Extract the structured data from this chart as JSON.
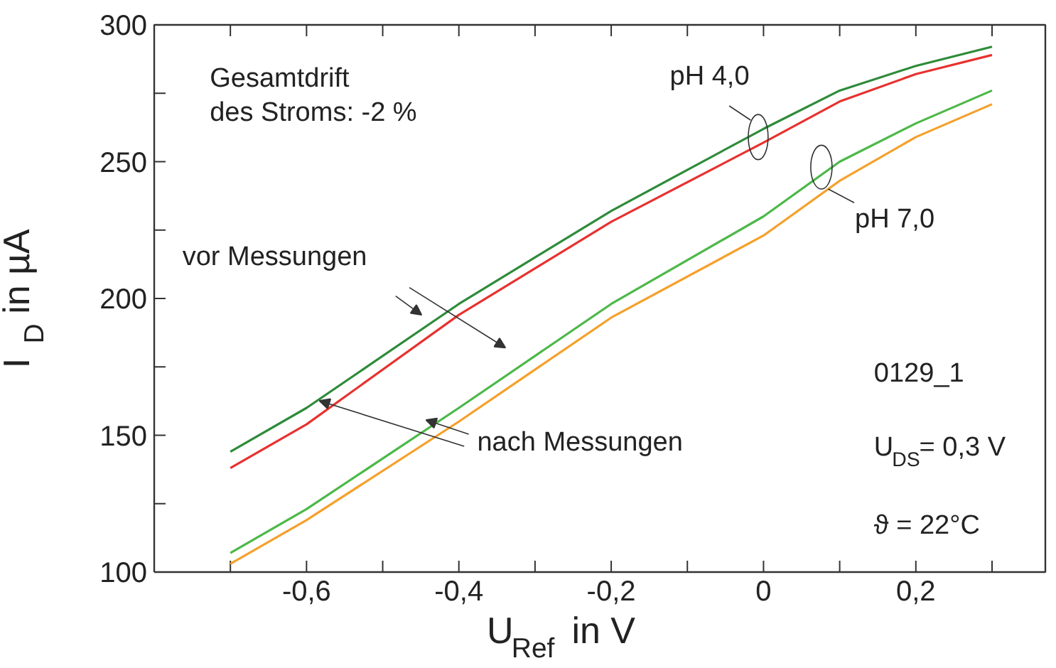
{
  "chart_data": {
    "type": "line",
    "xlabel": "U$_{Ref}$ in V",
    "ylabel": "I$_{D}$ in µA",
    "xlim": [
      -0.8,
      0.37
    ],
    "ylim": [
      100,
      300
    ],
    "xticks": [
      {
        "value": -0.7,
        "label": null
      },
      {
        "value": -0.6,
        "label": "-0,6"
      },
      {
        "value": -0.5,
        "label": null
      },
      {
        "value": -0.4,
        "label": "-0,4"
      },
      {
        "value": -0.3,
        "label": null
      },
      {
        "value": -0.2,
        "label": "-0,2"
      },
      {
        "value": -0.1,
        "label": null
      },
      {
        "value": 0,
        "label": "0"
      },
      {
        "value": 0.1,
        "label": null
      },
      {
        "value": 0.2,
        "label": "0,2"
      },
      {
        "value": 0.3,
        "label": null
      }
    ],
    "yticks": [
      100,
      {
        "value": 125,
        "label": null
      },
      150,
      {
        "value": 175,
        "label": null
      },
      200,
      {
        "value": 225,
        "label": null
      },
      250,
      {
        "value": 275,
        "label": null
      },
      300
    ],
    "grid": false,
    "legend": false,
    "marker": "none",
    "line_style": "solid",
    "x": [
      -0.7,
      -0.6,
      -0.4,
      -0.2,
      0,
      0.1,
      0.2,
      0.3
    ],
    "series": [
      {
        "color": "#2e8b3a",
        "values": [
          144,
          160,
          198,
          232,
          262,
          276,
          285,
          292
        ]
      },
      {
        "color": "#e8312f",
        "values": [
          138,
          154,
          194,
          228,
          257,
          272,
          282,
          289
        ]
      },
      {
        "color": "#4cb848",
        "values": [
          107,
          123,
          160,
          198,
          230,
          250,
          264,
          276
        ]
      },
      {
        "color": "#f5a02a",
        "values": [
          103,
          119,
          155,
          193,
          223,
          243,
          259,
          271
        ]
      }
    ],
    "annotations": [
      "Gesamtdrift\ndes Stroms: -2 %",
      "vor Messungen",
      {
        "text": "nach Messungen",
        "x": -0.583,
        "y": 162.6
      },
      {
        "text": "pH 4,0",
        "x": -0.007,
        "y": 259
      },
      {
        "text": "pH 7,0",
        "x": 0.076,
        "y": 248
      },
      "0129_1",
      "U$_{DS}$= 0,3 V",
      "ϑ = 22°C"
    ]
  }
}
